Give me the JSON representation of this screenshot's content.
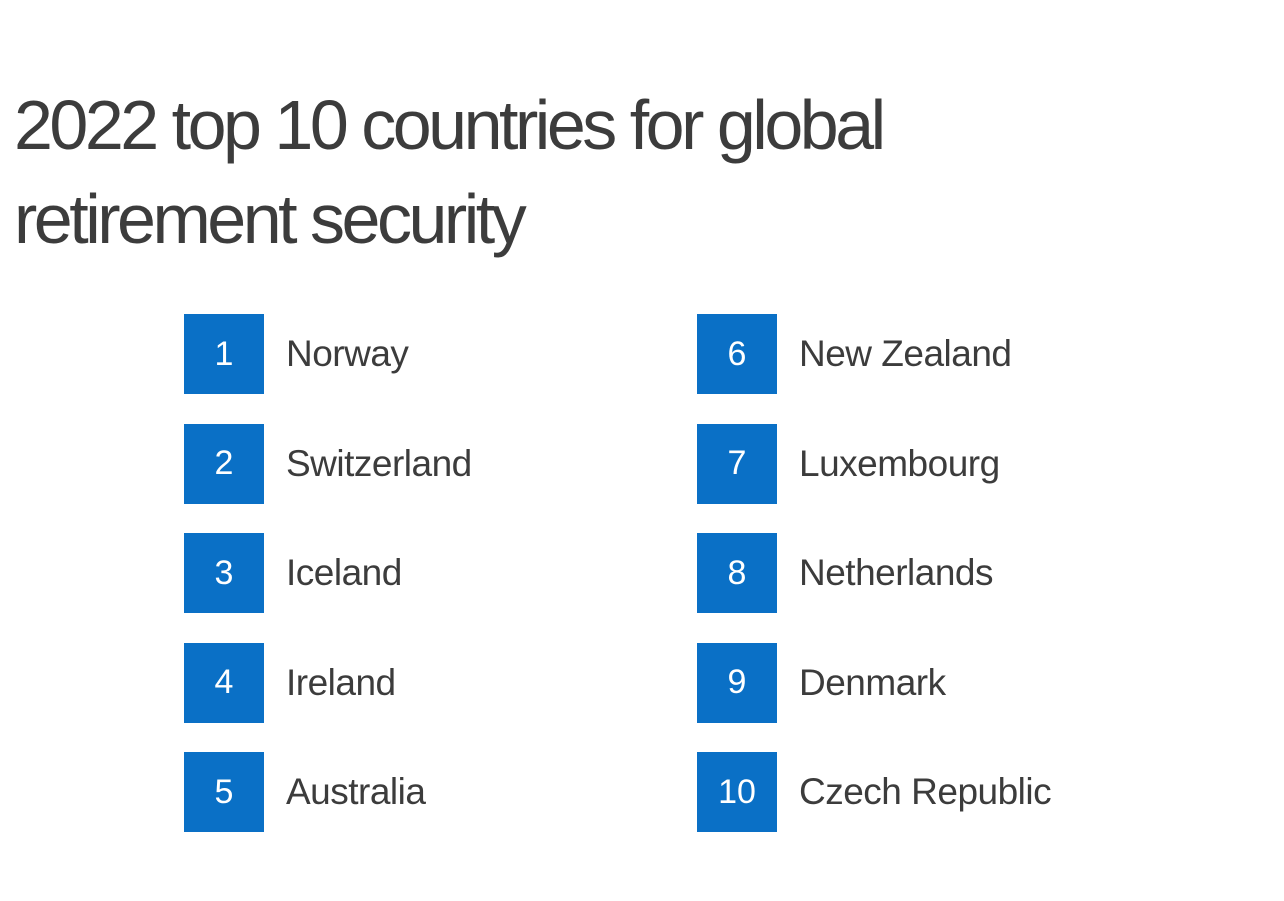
{
  "title": "2022 top 10 countries for global retirement security",
  "accent_color": "#0a70c6",
  "rankings_left": [
    {
      "rank": "1",
      "country": "Norway"
    },
    {
      "rank": "2",
      "country": "Switzerland"
    },
    {
      "rank": "3",
      "country": "Iceland"
    },
    {
      "rank": "4",
      "country": "Ireland"
    },
    {
      "rank": "5",
      "country": "Australia"
    }
  ],
  "rankings_right": [
    {
      "rank": "6",
      "country": "New Zealand"
    },
    {
      "rank": "7",
      "country": "Luxembourg"
    },
    {
      "rank": "8",
      "country": "Netherlands"
    },
    {
      "rank": "9",
      "country": "Denmark"
    },
    {
      "rank": "10",
      "country": "Czech Republic"
    }
  ]
}
